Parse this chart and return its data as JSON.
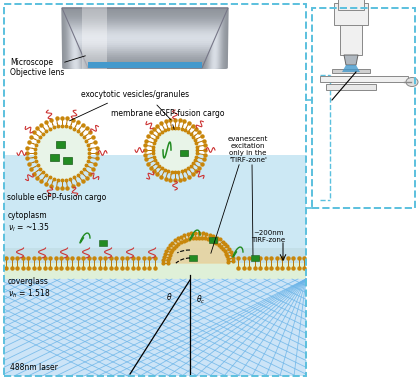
{
  "bg_color": "#ffffff",
  "border_color": "#5bc0de",
  "cytoplasm_color": "#cce8f4",
  "coverglass_color": "#dff0d8",
  "laser_bg_color": "#cce4f7",
  "membrane_color": "#a0522d",
  "membrane_head_color": "#c8860a",
  "membrane_tail_color": "#d4a050",
  "vesicle_fill": "#e8f4e8",
  "egfp_green": "#228B22",
  "protein_red": "#cc3333",
  "laser_line_color": "#6ab4e8",
  "obj_gray": "#c0c8d0",
  "obj_blue": "#4488cc",
  "annotations": {
    "microscope_label": "Microscope\nObjective lens",
    "exocytotic_label": "exocytotic vesicles/granules",
    "membrane_label": "membrane eGFP-fusion cargo",
    "soluble_label": "soluble eGFP-fusion cargo",
    "cytoplasm_label": "cytoplasm",
    "cytoplasm_n": "νₗ = ~1.35",
    "coverglass_label": "coverglass",
    "coverglass_n": "νₕ = 1.518",
    "laser_label": "488nm laser",
    "tirf_label": "~200nm\nTIRF-zone",
    "evanescent_label": "evanescent\nexcitation\nonly in the\n'TIRF-zone'"
  }
}
